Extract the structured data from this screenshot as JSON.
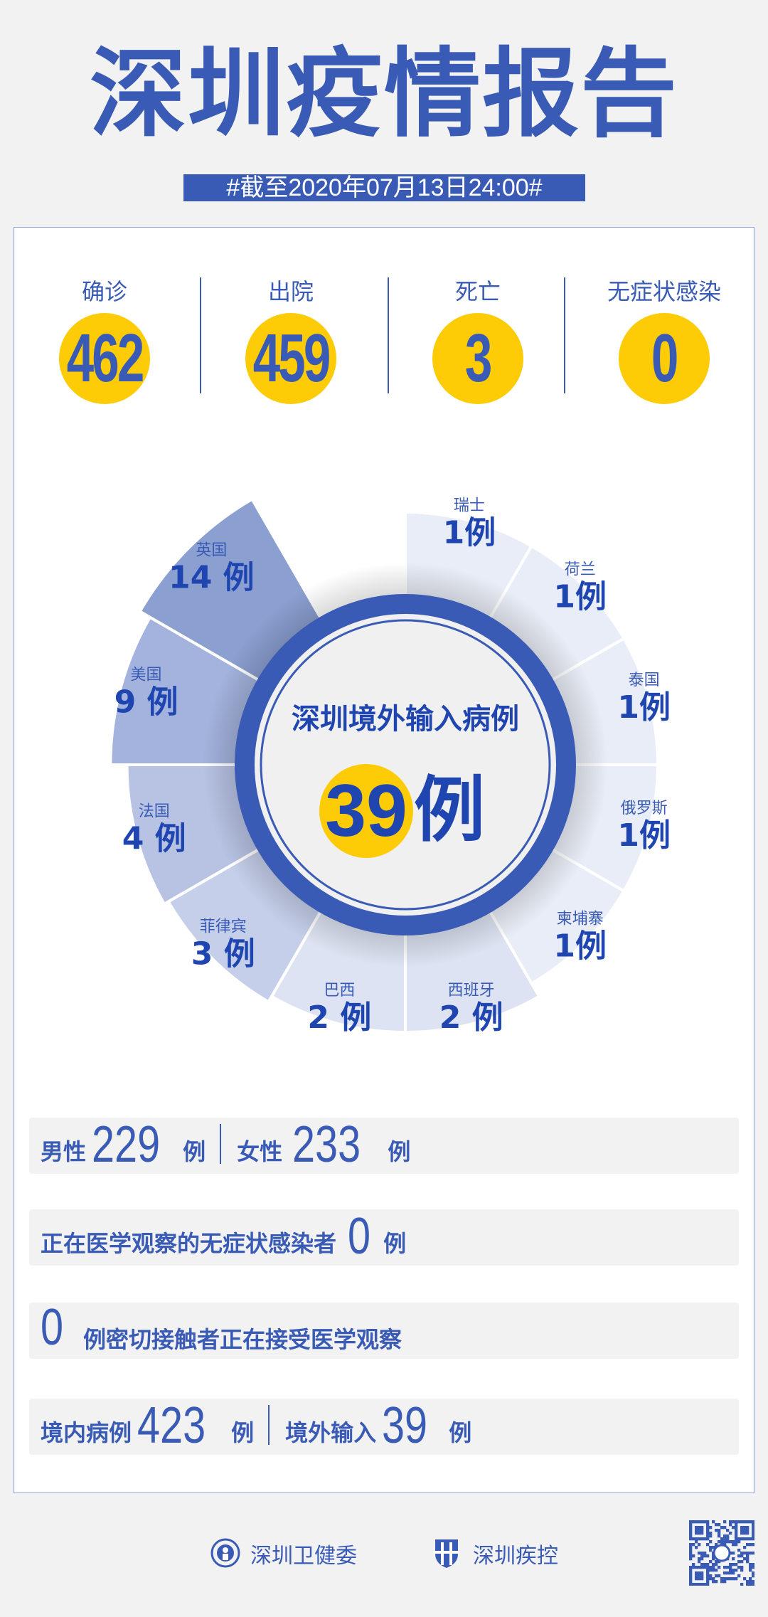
{
  "title": "深圳疫情报告",
  "date_banner": "#截至2020年07月13日24:00#",
  "stats": [
    {
      "label": "确诊",
      "value": "462"
    },
    {
      "label": "出院",
      "value": "459"
    },
    {
      "label": "死亡",
      "value": "3"
    },
    {
      "label": "无症状感染",
      "value": "0"
    }
  ],
  "donut": {
    "center_title": "深圳境外输入病例",
    "center_value": "39",
    "center_unit": "例",
    "unit": "例",
    "colors": {
      "ring": "#3a5bb5",
      "highlight": "#fecb07",
      "text": "#1f45b0"
    }
  },
  "chart_data": {
    "type": "nightingale-rose",
    "categories": [
      "瑞士",
      "荷兰",
      "泰国",
      "俄罗斯",
      "柬埔寨",
      "西班牙",
      "巴西",
      "菲律宾",
      "法国",
      "美国",
      "英国"
    ],
    "values": [
      1,
      1,
      1,
      1,
      1,
      2,
      2,
      3,
      4,
      9,
      14
    ],
    "labels": [
      "1例",
      "1例",
      "1例",
      "1例",
      "1例",
      "2 例",
      "2 例",
      "3 例",
      "4 例",
      "9 例",
      "14 例"
    ],
    "colors": [
      "#e9edf7",
      "#e9edf7",
      "#e9edf7",
      "#e9edf7",
      "#e9edf7",
      "#dde3f2",
      "#dde3f2",
      "#c6cfea",
      "#b8c3e4",
      "#a3b3dd",
      "#8b9fd0"
    ]
  },
  "rows": {
    "gender": {
      "male_label": "男性",
      "male_value": "229",
      "female_label": "女性",
      "female_value": "233",
      "unit": "例"
    },
    "asymptomatic": {
      "label": "正在医学观察的无症状感染者",
      "value": "0",
      "unit": "例"
    },
    "contacts": {
      "value": "0",
      "label": "例密切接触者正在接受医学观察"
    },
    "origin": {
      "local_label": "境内病例",
      "local_value": "423",
      "imported_label": "境外输入",
      "imported_value": "39",
      "unit": "例"
    }
  },
  "footer": {
    "org1": "深圳卫健委",
    "org2": "深圳疾控",
    "qr_icon": "qr-code"
  }
}
